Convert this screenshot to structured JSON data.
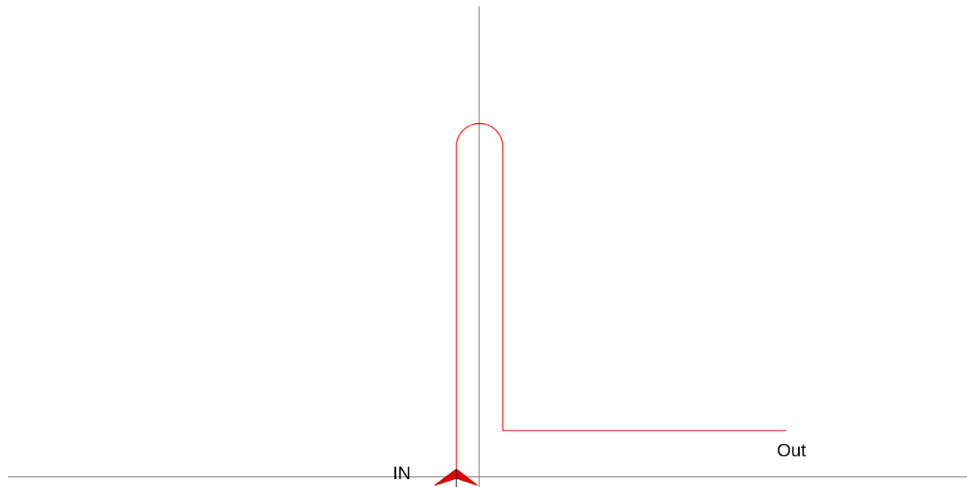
{
  "labels": {
    "in": "IN",
    "out": "Out"
  },
  "colors": {
    "background": "#ffffff",
    "axis": "#808080",
    "path": "#ff0000",
    "marker": "#e00000",
    "text": "#000000"
  }
}
